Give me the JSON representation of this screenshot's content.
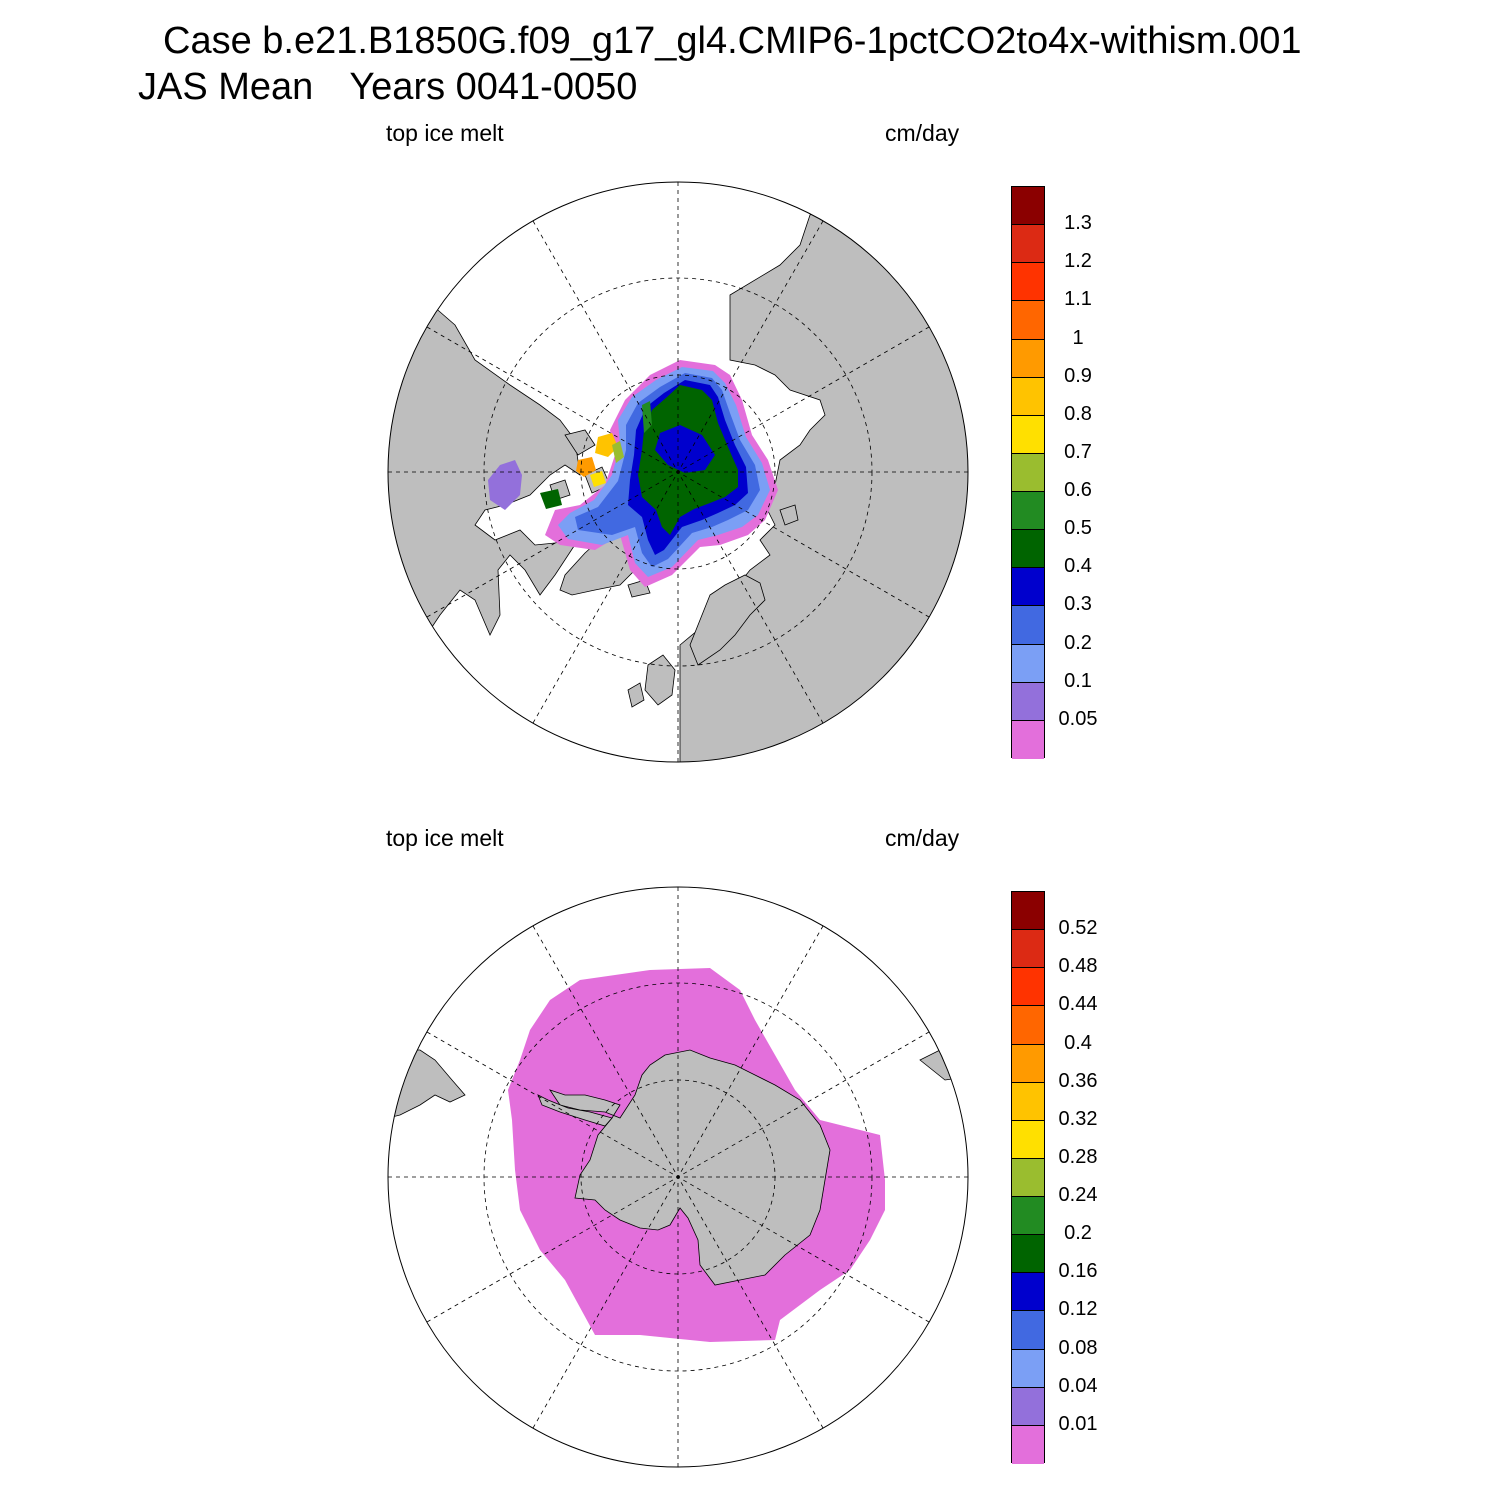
{
  "title": {
    "case_line": "Case b.e21.B1850G.f09_g17_gl4.CMIP6-1pctCO2to4x-withism.001",
    "mean_label": "JAS Mean",
    "years_label": "Years 0041-0050"
  },
  "colors": {
    "land": "#bebebe",
    "palette": [
      "#e36fdb",
      "#9370db",
      "#7b9ff5",
      "#4169e1",
      "#0000cd",
      "#006400",
      "#228b22",
      "#9abd2f",
      "#ffe000",
      "#ffc300",
      "#ff9a00",
      "#ff6600",
      "#ff3300",
      "#dc2a14",
      "#8b0000"
    ]
  },
  "panels": [
    {
      "name": "northern-hemisphere",
      "variable_label": "top ice melt",
      "units_label": "cm/day",
      "colorbar_labels": [
        "0.05",
        "0.1",
        "0.2",
        "0.3",
        "0.4",
        "0.5",
        "0.6",
        "0.7",
        "0.8",
        "0.9",
        "1",
        "1.1",
        "1.2",
        "1.3"
      ]
    },
    {
      "name": "southern-hemisphere",
      "variable_label": "top ice melt",
      "units_label": "cm/day",
      "colorbar_labels": [
        "0.01",
        "0.04",
        "0.08",
        "0.12",
        "0.16",
        "0.2",
        "0.24",
        "0.28",
        "0.32",
        "0.36",
        "0.4",
        "0.44",
        "0.48",
        "0.52"
      ]
    }
  ]
}
